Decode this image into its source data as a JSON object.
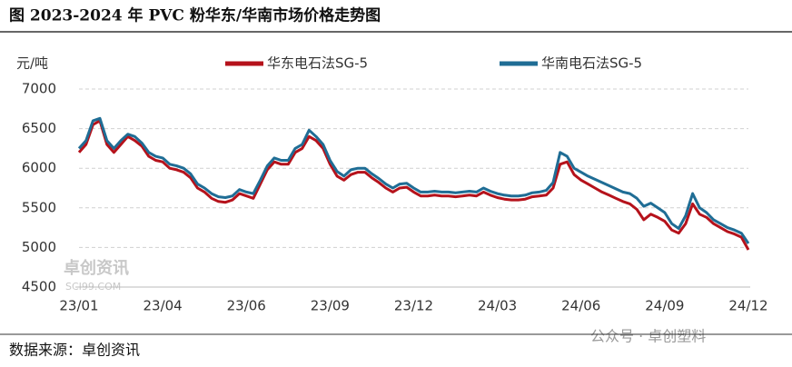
{
  "chart_data": {
    "type": "line",
    "title": "图 2023-2024 年 PVC 粉华东/华南市场价格走势图",
    "ylabel": "元/吨",
    "source": "数据来源：卓创资讯",
    "watermarks": [
      "卓创资讯",
      "SCI99.COM",
      "公众号 · 卓创塑料"
    ],
    "legend": "upper center",
    "grid": true,
    "ylim": [
      4500,
      7000
    ],
    "yticks": [
      4500,
      5000,
      5500,
      6000,
      6500,
      7000
    ],
    "categories": [
      "23/01",
      null,
      null,
      null,
      null,
      null,
      null,
      null,
      null,
      null,
      null,
      null,
      "23/04",
      null,
      null,
      null,
      null,
      null,
      null,
      null,
      null,
      null,
      null,
      null,
      "23/06",
      null,
      null,
      null,
      null,
      null,
      null,
      null,
      null,
      null,
      null,
      null,
      "23/09",
      null,
      null,
      null,
      null,
      null,
      null,
      null,
      null,
      null,
      null,
      null,
      "23/12",
      null,
      null,
      null,
      null,
      null,
      null,
      null,
      null,
      null,
      null,
      null,
      "24/03",
      null,
      null,
      null,
      null,
      null,
      null,
      null,
      null,
      null,
      null,
      null,
      "24/06",
      null,
      null,
      null,
      null,
      null,
      null,
      null,
      null,
      null,
      null,
      null,
      "24/09",
      null,
      null,
      null,
      null,
      null,
      null,
      null,
      null,
      null,
      null,
      null,
      "24/12"
    ],
    "series": [
      {
        "name": "华东电石法SG-5",
        "color": "#b5121b",
        "values": [
          6200,
          6300,
          6550,
          6600,
          6300,
          6200,
          6300,
          6400,
          6350,
          6280,
          6150,
          6100,
          6080,
          6000,
          5980,
          5950,
          5880,
          5750,
          5700,
          5620,
          5580,
          5570,
          5600,
          5680,
          5650,
          5620,
          5800,
          5980,
          6080,
          6050,
          6050,
          6200,
          6250,
          6400,
          6350,
          6250,
          6050,
          5900,
          5850,
          5920,
          5950,
          5950,
          5880,
          5820,
          5750,
          5700,
          5750,
          5760,
          5700,
          5650,
          5650,
          5660,
          5650,
          5650,
          5640,
          5650,
          5660,
          5650,
          5700,
          5660,
          5630,
          5610,
          5600,
          5600,
          5610,
          5640,
          5650,
          5660,
          5750,
          6050,
          6080,
          5920,
          5850,
          5800,
          5750,
          5700,
          5660,
          5620,
          5580,
          5550,
          5480,
          5350,
          5420,
          5380,
          5330,
          5220,
          5180,
          5300,
          5550,
          5420,
          5380,
          5300,
          5250,
          5200,
          5170,
          5130,
          4970
        ]
      },
      {
        "name": "华南电石法SG-5",
        "color": "#1f6d95",
        "values": [
          6250,
          6350,
          6600,
          6630,
          6350,
          6250,
          6350,
          6430,
          6400,
          6320,
          6200,
          6150,
          6130,
          6050,
          6030,
          6000,
          5930,
          5800,
          5750,
          5680,
          5640,
          5630,
          5650,
          5730,
          5700,
          5680,
          5850,
          6030,
          6130,
          6100,
          6100,
          6250,
          6300,
          6480,
          6400,
          6300,
          6100,
          5960,
          5900,
          5980,
          6000,
          6000,
          5930,
          5870,
          5800,
          5750,
          5800,
          5810,
          5750,
          5700,
          5700,
          5710,
          5700,
          5700,
          5690,
          5700,
          5710,
          5700,
          5750,
          5710,
          5680,
          5660,
          5650,
          5650,
          5660,
          5690,
          5700,
          5720,
          5820,
          6200,
          6150,
          6000,
          5950,
          5900,
          5860,
          5820,
          5780,
          5740,
          5700,
          5680,
          5620,
          5520,
          5560,
          5500,
          5440,
          5300,
          5240,
          5400,
          5680,
          5500,
          5440,
          5350,
          5300,
          5250,
          5220,
          5180,
          5050
        ]
      }
    ]
  }
}
